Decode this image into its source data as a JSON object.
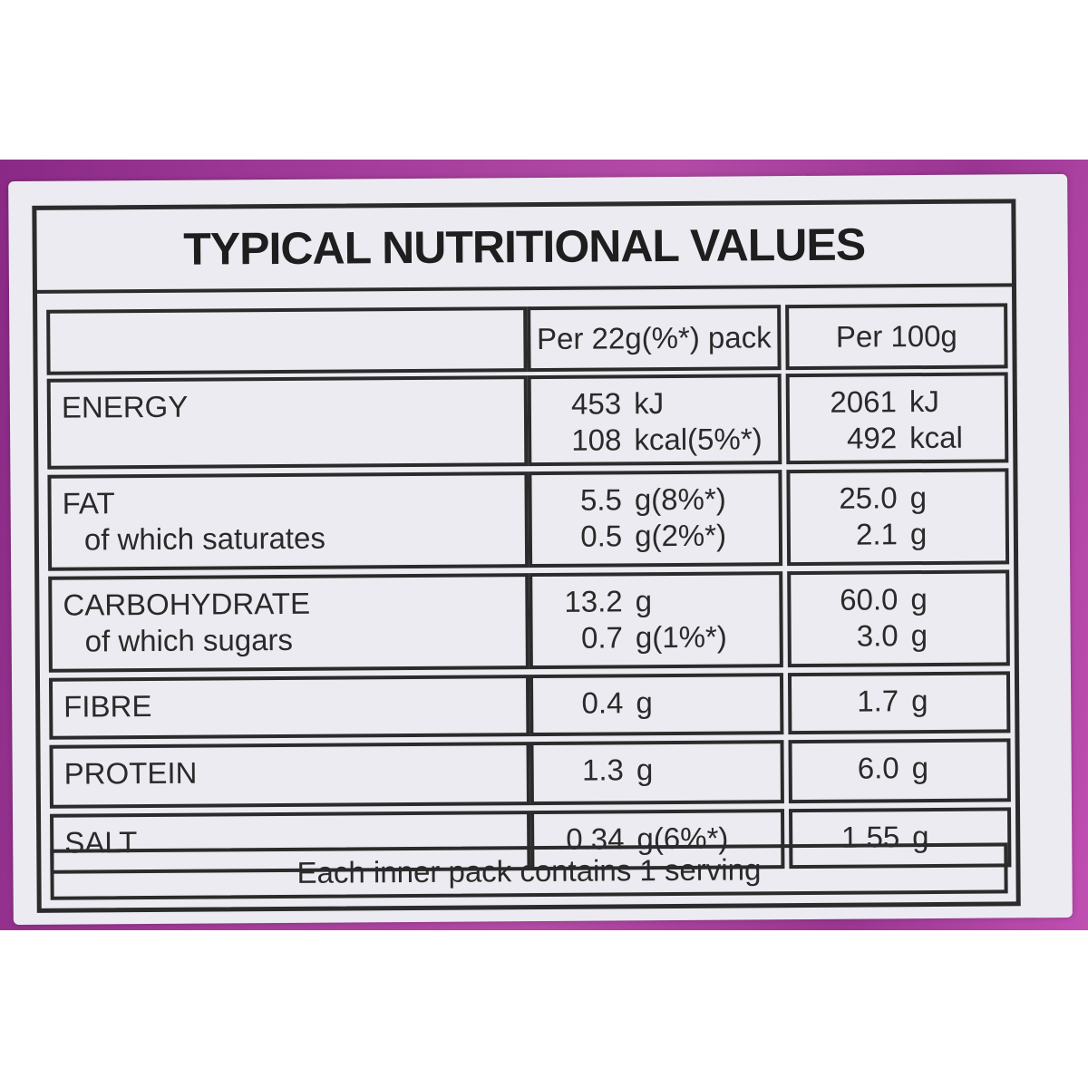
{
  "title": "TYPICAL NUTRITIONAL VALUES",
  "columns": [
    "Per 22g(%*) pack",
    "Per 100g"
  ],
  "rows": [
    {
      "label": "ENERGY",
      "sublabel": "",
      "pack": [
        {
          "n": "453",
          "u": "kJ"
        },
        {
          "n": "108",
          "u": "kcal(5%*)"
        }
      ],
      "per100": [
        {
          "n": "2061",
          "u": "kJ"
        },
        {
          "n": "492",
          "u": "kcal"
        }
      ]
    },
    {
      "label": "FAT",
      "sublabel": "of which saturates",
      "pack": [
        {
          "n": "5.5",
          "u": "g(8%*)"
        },
        {
          "n": "0.5",
          "u": "g(2%*)"
        }
      ],
      "per100": [
        {
          "n": "25.0",
          "u": "g"
        },
        {
          "n": "2.1",
          "u": "g"
        }
      ]
    },
    {
      "label": "CARBOHYDRATE",
      "sublabel": "of which sugars",
      "pack": [
        {
          "n": "13.2",
          "u": "g"
        },
        {
          "n": "0.7",
          "u": "g(1%*)"
        }
      ],
      "per100": [
        {
          "n": "60.0",
          "u": "g"
        },
        {
          "n": "3.0",
          "u": "g"
        }
      ]
    },
    {
      "label": "FIBRE",
      "sublabel": "",
      "pack": [
        {
          "n": "0.4",
          "u": "g"
        }
      ],
      "per100": [
        {
          "n": "1.7",
          "u": "g"
        }
      ]
    },
    {
      "label": "PROTEIN",
      "sublabel": "",
      "pack": [
        {
          "n": "1.3",
          "u": "g"
        }
      ],
      "per100": [
        {
          "n": "6.0",
          "u": "g"
        }
      ]
    },
    {
      "label": "SALT",
      "sublabel": "",
      "pack": [
        {
          "n": "0.34",
          "u": "g(6%*)"
        }
      ],
      "per100": [
        {
          "n": "1.55",
          "u": "g"
        }
      ]
    }
  ],
  "footer": "Each inner pack contains 1 serving",
  "colors": {
    "packaging": "#a43d9b",
    "label": "#ecebf1",
    "ink": "#2b2b2b"
  }
}
